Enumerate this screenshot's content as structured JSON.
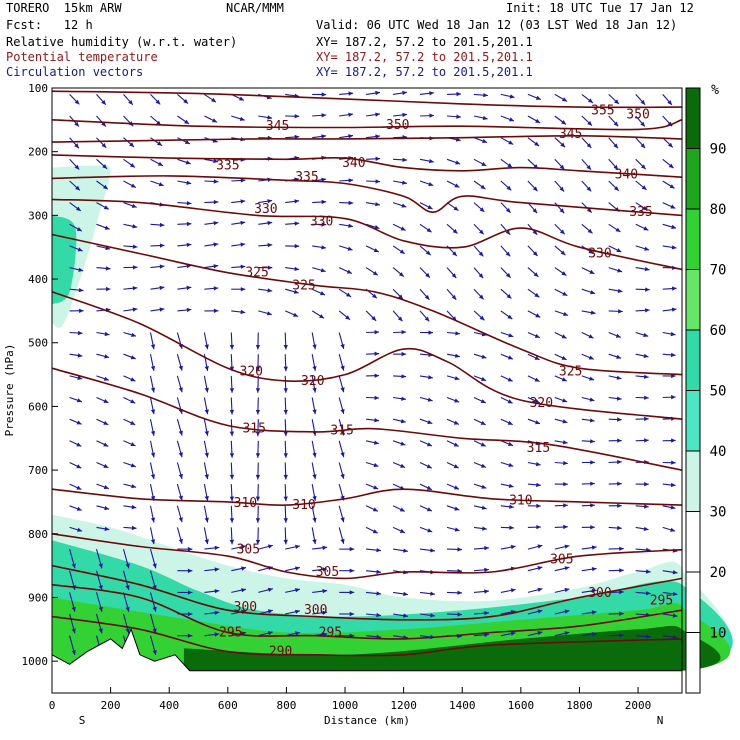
{
  "header": {
    "model_line": "TORERO  15km ARW",
    "center": "NCAR/MMM",
    "init": "Init: 18 UTC Tue 17 Jan 12",
    "fcst": "Fcst:   12 h",
    "valid": "Valid: 06 UTC Wed 18 Jan 12 (03 LST Wed 18 Jan 12)",
    "fields": [
      {
        "label": "Relative humidity (w.r.t. water)",
        "xy": "XY= 187.2, 57.2 to 201.5,201.1",
        "color": "#000000"
      },
      {
        "label": "Potential temperature",
        "xy": "XY= 187.2, 57.2 to 201.5,201.1",
        "color": "#8b1a1a"
      },
      {
        "label": "Circulation vectors",
        "xy": "XY= 187.2, 57.2 to 201.5,201.1",
        "color": "#1a1a8c"
      }
    ]
  },
  "colors": {
    "theta_contour": "#6b0a0a",
    "vectors": "#1a1a9c",
    "terrain": "#ffffff"
  },
  "chart_data": {
    "type": "heatmap",
    "xlabel": "Distance (km)",
    "ylabel": "Pressure (hPa)",
    "x_ticks": [
      0,
      200,
      400,
      600,
      800,
      1000,
      1200,
      1400,
      1600,
      1800,
      2000
    ],
    "y_ticks": [
      100,
      200,
      300,
      400,
      500,
      600,
      700,
      800,
      900,
      1000
    ],
    "xlim": [
      0,
      2150
    ],
    "ylim": [
      1050,
      100
    ],
    "x_end_labels": {
      "left": "S",
      "right": "N"
    },
    "colorbar": {
      "unit": "%",
      "ticks": [
        10,
        20,
        30,
        40,
        50,
        60,
        70,
        80,
        90
      ],
      "bins": [
        {
          "min": 30,
          "max": 40,
          "color": "#ccf5e8"
        },
        {
          "min": 40,
          "max": 50,
          "color": "#4de5c2"
        },
        {
          "min": 50,
          "max": 60,
          "color": "#33d9a6"
        },
        {
          "min": 60,
          "max": 70,
          "color": "#66e566"
        },
        {
          "min": 70,
          "max": 80,
          "color": "#33d133"
        },
        {
          "min": 80,
          "max": 90,
          "color": "#1fa61f"
        },
        {
          "min": 90,
          "max": 100,
          "color": "#0a6b0a"
        }
      ]
    },
    "rh_regions": [
      {
        "name": "upper-left moist tongue",
        "level": 35,
        "points": [
          [
            0,
            225
          ],
          [
            150,
            222
          ],
          [
            200,
            230
          ],
          [
            160,
            300
          ],
          [
            110,
            380
          ],
          [
            40,
            470
          ],
          [
            0,
            470
          ]
        ]
      },
      {
        "name": "upper-left moist core",
        "level": 55,
        "points": [
          [
            0,
            300
          ],
          [
            80,
            320
          ],
          [
            60,
            420
          ],
          [
            0,
            440
          ]
        ]
      },
      {
        "name": "low-level boundary layer",
        "level": 35,
        "points": [
          [
            0,
            770
          ],
          [
            200,
            790
          ],
          [
            400,
            820
          ],
          [
            600,
            850
          ],
          [
            800,
            870
          ],
          [
            1000,
            880
          ],
          [
            1200,
            900
          ],
          [
            1500,
            905
          ],
          [
            1800,
            885
          ],
          [
            2000,
            860
          ],
          [
            2150,
            855
          ],
          [
            2150,
            1015
          ],
          [
            0,
            1015
          ]
        ]
      },
      {
        "name": "low-level moist",
        "level": 55,
        "points": [
          [
            0,
            810
          ],
          [
            300,
            850
          ],
          [
            500,
            890
          ],
          [
            700,
            920
          ],
          [
            1000,
            930
          ],
          [
            1400,
            920
          ],
          [
            1800,
            900
          ],
          [
            2150,
            880
          ],
          [
            2150,
            1015
          ],
          [
            0,
            1015
          ]
        ]
      },
      {
        "name": "low-level very moist",
        "level": 75,
        "points": [
          [
            0,
            900
          ],
          [
            400,
            930
          ],
          [
            800,
            955
          ],
          [
            1200,
            950
          ],
          [
            1600,
            935
          ],
          [
            2000,
            920
          ],
          [
            2150,
            915
          ],
          [
            2150,
            1015
          ],
          [
            0,
            1015
          ]
        ]
      },
      {
        "name": "near-surface saturated",
        "level": 95,
        "points": [
          [
            450,
            980
          ],
          [
            1000,
            990
          ],
          [
            1600,
            965
          ],
          [
            2000,
            950
          ],
          [
            2150,
            950
          ],
          [
            2150,
            1015
          ],
          [
            450,
            1015
          ]
        ]
      }
    ],
    "terrain": [
      [
        0,
        1050
      ],
      [
        0,
        990
      ],
      [
        60,
        1005
      ],
      [
        120,
        985
      ],
      [
        200,
        965
      ],
      [
        240,
        980
      ],
      [
        270,
        950
      ],
      [
        300,
        990
      ],
      [
        350,
        1000
      ],
      [
        420,
        990
      ],
      [
        470,
        1015
      ],
      [
        2150,
        1015
      ],
      [
        2150,
        1050
      ]
    ],
    "theta_contours": [
      {
        "value": 355,
        "points": [
          [
            0,
            105
          ],
          [
            600,
            110
          ],
          [
            1400,
            125
          ],
          [
            1800,
            130
          ],
          [
            2150,
            130
          ]
        ],
        "labels": [
          [
            1880,
            135
          ]
        ]
      },
      {
        "value": 350,
        "points": [
          [
            0,
            150
          ],
          [
            500,
            160
          ],
          [
            1000,
            162
          ],
          [
            1400,
            160
          ],
          [
            2000,
            165
          ],
          [
            2150,
            150
          ]
        ],
        "labels": [
          [
            1180,
            158
          ],
          [
            2000,
            142
          ]
        ]
      },
      {
        "value": 345,
        "points": [
          [
            0,
            185
          ],
          [
            400,
            182
          ],
          [
            700,
            180
          ],
          [
            1000,
            180
          ],
          [
            1400,
            178
          ],
          [
            1800,
            175
          ],
          [
            2150,
            180
          ]
        ],
        "labels": [
          [
            770,
            160
          ],
          [
            1770,
            172
          ]
        ]
      },
      {
        "value": 340,
        "points": [
          [
            0,
            205
          ],
          [
            400,
            210
          ],
          [
            800,
            212
          ],
          [
            1000,
            210
          ],
          [
            1200,
            225
          ],
          [
            1400,
            230
          ],
          [
            1600,
            225
          ],
          [
            1800,
            230
          ],
          [
            2150,
            240
          ]
        ],
        "labels": [
          [
            1030,
            218
          ],
          [
            1960,
            236
          ]
        ]
      },
      {
        "value": 335,
        "points": [
          [
            0,
            242
          ],
          [
            400,
            238
          ],
          [
            800,
            245
          ],
          [
            1000,
            250
          ],
          [
            1200,
            270
          ],
          [
            1300,
            295
          ],
          [
            1400,
            270
          ],
          [
            1600,
            280
          ],
          [
            2150,
            300
          ]
        ],
        "labels": [
          [
            600,
            222
          ],
          [
            870,
            240
          ],
          [
            2010,
            295
          ]
        ]
      },
      {
        "value": 330,
        "points": [
          [
            0,
            275
          ],
          [
            300,
            280
          ],
          [
            700,
            300
          ],
          [
            1000,
            305
          ],
          [
            1200,
            340
          ],
          [
            1400,
            350
          ],
          [
            1600,
            320
          ],
          [
            1800,
            350
          ],
          [
            2150,
            385
          ]
        ],
        "labels": [
          [
            730,
            290
          ],
          [
            920,
            310
          ],
          [
            1870,
            360
          ]
        ]
      },
      {
        "value": 325,
        "points": [
          [
            0,
            330
          ],
          [
            300,
            360
          ],
          [
            600,
            390
          ],
          [
            900,
            410
          ],
          [
            1100,
            420
          ],
          [
            1300,
            450
          ],
          [
            1600,
            510
          ],
          [
            1800,
            540
          ],
          [
            2150,
            550
          ]
        ],
        "labels": [
          [
            700,
            390
          ],
          [
            860,
            410
          ],
          [
            1770,
            545
          ]
        ]
      },
      {
        "value": 320,
        "points": [
          [
            0,
            420
          ],
          [
            300,
            470
          ],
          [
            600,
            540
          ],
          [
            800,
            560
          ],
          [
            1000,
            550
          ],
          [
            1200,
            510
          ],
          [
            1350,
            530
          ],
          [
            1600,
            590
          ],
          [
            2150,
            620
          ]
        ],
        "labels": [
          [
            680,
            545
          ],
          [
            890,
            560
          ],
          [
            1670,
            595
          ]
        ]
      },
      {
        "value": 315,
        "points": [
          [
            0,
            540
          ],
          [
            300,
            580
          ],
          [
            600,
            630
          ],
          [
            900,
            640
          ],
          [
            1100,
            635
          ],
          [
            1400,
            650
          ],
          [
            1700,
            660
          ],
          [
            2150,
            700
          ]
        ],
        "labels": [
          [
            690,
            635
          ],
          [
            990,
            638
          ],
          [
            1660,
            665
          ]
        ]
      },
      {
        "value": 310,
        "points": [
          [
            0,
            730
          ],
          [
            300,
            745
          ],
          [
            600,
            750
          ],
          [
            800,
            755
          ],
          [
            1000,
            745
          ],
          [
            1200,
            730
          ],
          [
            1500,
            745
          ],
          [
            1800,
            750
          ],
          [
            2150,
            755
          ]
        ],
        "labels": [
          [
            660,
            752
          ],
          [
            860,
            755
          ],
          [
            1600,
            748
          ]
        ]
      },
      {
        "value": 305,
        "points": [
          [
            0,
            800
          ],
          [
            300,
            820
          ],
          [
            600,
            835
          ],
          [
            800,
            860
          ],
          [
            1000,
            870
          ],
          [
            1200,
            860
          ],
          [
            1500,
            860
          ],
          [
            1800,
            835
          ],
          [
            2150,
            825
          ]
        ],
        "labels": [
          [
            670,
            825
          ],
          [
            940,
            860
          ],
          [
            1740,
            840
          ]
        ]
      },
      {
        "value": 300,
        "points": [
          [
            0,
            850
          ],
          [
            300,
            880
          ],
          [
            600,
            920
          ],
          [
            900,
            930
          ],
          [
            1200,
            935
          ],
          [
            1500,
            930
          ],
          [
            1800,
            900
          ],
          [
            2150,
            870
          ]
        ],
        "labels": [
          [
            660,
            915
          ],
          [
            900,
            920
          ],
          [
            1870,
            893
          ]
        ]
      },
      {
        "value": 295,
        "points": [
          [
            0,
            880
          ],
          [
            300,
            900
          ],
          [
            600,
            955
          ],
          [
            900,
            960
          ],
          [
            1200,
            965
          ],
          [
            1500,
            955
          ],
          [
            1800,
            945
          ],
          [
            2150,
            920
          ]
        ],
        "labels": [
          [
            610,
            955
          ],
          [
            950,
            955
          ],
          [
            2080,
            905
          ]
        ]
      },
      {
        "value": 290,
        "points": [
          [
            0,
            930
          ],
          [
            300,
            950
          ],
          [
            600,
            985
          ],
          [
            900,
            990
          ],
          [
            1200,
            990
          ],
          [
            1500,
            975
          ],
          [
            2150,
            965
          ]
        ],
        "labels": [
          [
            780,
            985
          ]
        ]
      }
    ]
  }
}
